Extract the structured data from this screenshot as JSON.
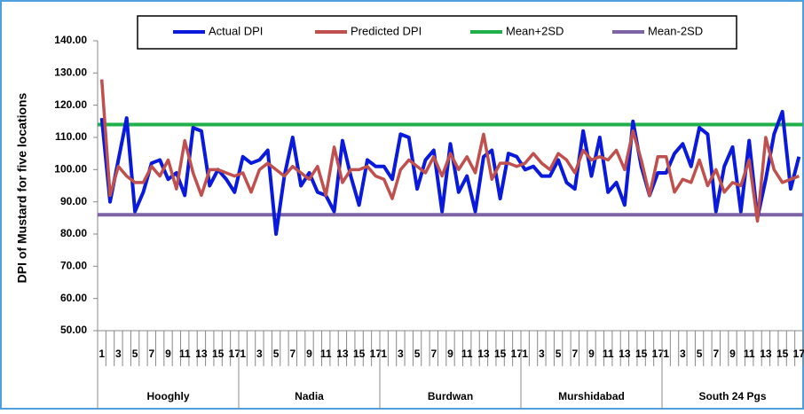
{
  "chart_data": {
    "type": "line",
    "y_label": "DPI of Mustard for five locations",
    "categories": [
      "1",
      null,
      "3",
      null,
      "5",
      null,
      "7",
      null,
      "9",
      null,
      "11",
      null,
      "13",
      null,
      "15",
      null,
      "17",
      "1",
      null,
      "3",
      null,
      "5",
      null,
      "7",
      null,
      "9",
      null,
      "11",
      null,
      "13",
      null,
      "15",
      null,
      "17",
      "1",
      null,
      "3",
      null,
      "5",
      null,
      "7",
      null,
      "9",
      null,
      "11",
      null,
      "13",
      null,
      "15",
      null,
      "17",
      "1",
      null,
      "3",
      null,
      "5",
      null,
      "7",
      null,
      "9",
      null,
      "11",
      null,
      "13",
      null,
      "15",
      null,
      "17",
      "1",
      null,
      "3",
      null,
      "5",
      null,
      "7",
      null,
      "9",
      null,
      "11",
      null,
      "13",
      null,
      "15",
      null,
      "17"
    ],
    "groups": [
      "Hooghly",
      "Nadia",
      "Burdwan",
      "Murshidabad",
      "South 24 Pgs"
    ],
    "series": [
      {
        "name": "Actual DPI",
        "color": "#0a1adc",
        "values": [
          116,
          90,
          103,
          116,
          87,
          93,
          102,
          103,
          97,
          99,
          92,
          113,
          112,
          95,
          100,
          97,
          93,
          104,
          102,
          103,
          106,
          80,
          98,
          110,
          95,
          99,
          93,
          92,
          87,
          109,
          98,
          89,
          103,
          101,
          101,
          97,
          111,
          110,
          94,
          103,
          106,
          87,
          108,
          93,
          98,
          87,
          104,
          106,
          91,
          105,
          104,
          100,
          101,
          98,
          98,
          103,
          96,
          94,
          112,
          98,
          110,
          93,
          96,
          89,
          115,
          101,
          92,
          99,
          99,
          105,
          108,
          101,
          113,
          111,
          87,
          101,
          107,
          87,
          109,
          85,
          97,
          111,
          118,
          94,
          104
        ]
      },
      {
        "name": "Predicted DPI",
        "color": "#c0504d",
        "values": [
          128,
          92,
          101,
          98,
          96,
          96,
          101,
          98,
          103,
          94,
          109,
          99,
          92,
          100,
          100,
          99,
          98,
          99,
          93,
          100,
          102,
          100,
          98,
          101,
          99,
          97,
          101,
          92,
          107,
          96,
          100,
          100,
          101,
          98,
          97,
          91,
          100,
          103,
          101,
          99,
          104,
          98,
          105,
          100,
          104,
          99,
          111,
          97,
          102,
          102,
          101,
          102,
          105,
          102,
          100,
          105,
          103,
          99,
          106,
          103,
          104,
          103,
          106,
          100,
          112,
          103,
          92,
          104,
          104,
          93,
          97,
          96,
          103,
          95,
          100,
          93,
          96,
          95,
          103,
          84,
          110,
          100,
          96,
          97,
          98
        ]
      }
    ],
    "reference_lines": [
      {
        "name": "Mean+2SD",
        "color": "#1fb04a",
        "value": 114
      },
      {
        "name": "Mean-2SD",
        "color": "#7e62a6",
        "value": 86
      }
    ],
    "ylim": [
      50,
      140
    ],
    "yticks": [
      {
        "value": 50,
        "label": "50.00"
      },
      {
        "value": 60,
        "label": "60.00"
      },
      {
        "value": 70,
        "label": "70.00"
      },
      {
        "value": 80,
        "label": "80.00"
      },
      {
        "value": 90,
        "label": "90.00"
      },
      {
        "value": 100,
        "label": "100.00"
      },
      {
        "value": 110,
        "label": "110.00"
      },
      {
        "value": 120,
        "label": "120.00"
      },
      {
        "value": 130,
        "label": "130.00"
      },
      {
        "value": 140,
        "label": "140.00"
      }
    ]
  }
}
